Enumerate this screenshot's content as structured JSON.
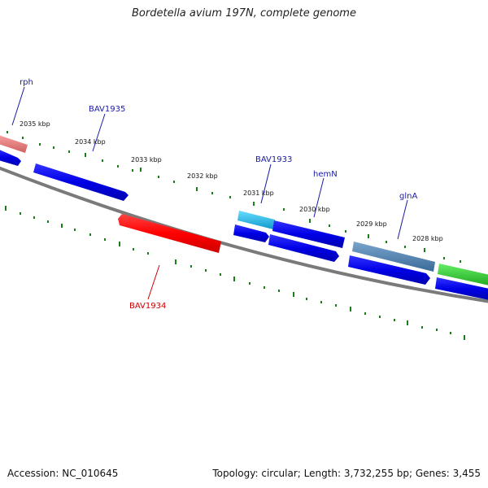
{
  "title": "Bordetella avium 197N, complete genome",
  "footer": {
    "accession": "Accession: NC_010645",
    "summary": "Topology: circular; Length: 3,732,255 bp; Genes: 3,455"
  },
  "colors": {
    "backbone": "#808080",
    "tick": "#1a7f1a",
    "label_blue": "#1a1aa6",
    "label_red": "#cc0000",
    "cds_blue": "#0000e6",
    "cds_red": "#ff0000",
    "cds_pink": "#f08080",
    "cds_cyan": "#22bbee",
    "cds_steel": "#4a7aaa",
    "cds_green": "#33cc33"
  },
  "kbp_labels": [
    "2035 kbp",
    "2034 kbp",
    "2033 kbp",
    "2032 kbp",
    "2031 kbp",
    "2030 kbp",
    "2029 kbp",
    "2028 kbp"
  ],
  "gene_labels": {
    "rph": "rph",
    "bav1935": "BAV1935",
    "bav1933": "BAV1933",
    "hemN": "hemN",
    "glnA": "glnA",
    "bav1934": "BAV1934"
  }
}
